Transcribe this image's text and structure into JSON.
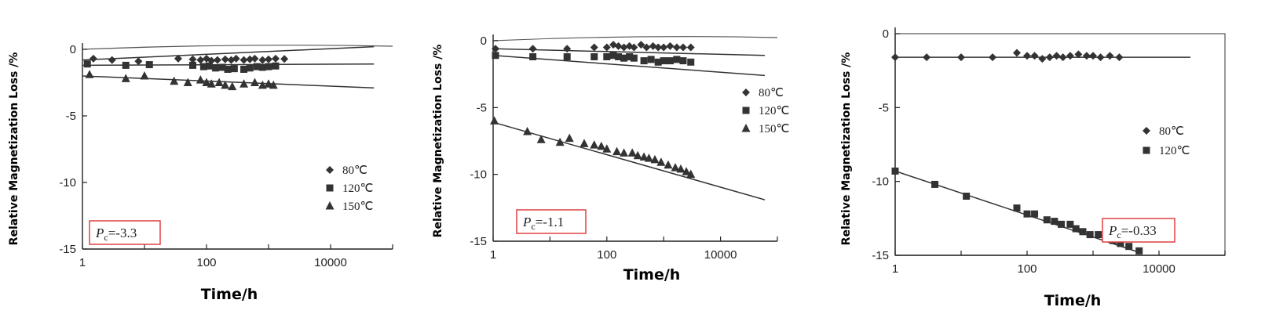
{
  "chart_data": [
    {
      "type": "scatter",
      "xscale": "log",
      "xlim": [
        1,
        100000
      ],
      "ylim": [
        -15,
        0
      ],
      "xticks": [
        "1",
        "100",
        "10000"
      ],
      "yticks": [
        "0",
        "-5",
        "-10",
        "-15"
      ],
      "xlabel": "Time/h",
      "ylabel": "Relative Magnetization Loss /%",
      "legend_position": "bottom-right",
      "annotation": {
        "prefix": "P",
        "sub": "c",
        "value": "=-3.3"
      },
      "series": [
        {
          "name": "80℃",
          "marker": "diamond",
          "x": [
            1.5,
            3,
            8,
            35,
            60,
            80,
            100,
            120,
            150,
            200,
            250,
            300,
            400,
            500,
            600,
            800,
            1000,
            1300,
            1800
          ],
          "y": [
            -0.7,
            -0.8,
            -0.9,
            -0.7,
            -0.75,
            -0.8,
            -0.7,
            -0.85,
            -0.8,
            -0.75,
            -0.8,
            -0.7,
            -0.8,
            -0.75,
            -0.7,
            -0.8,
            -0.75,
            -0.7,
            -0.72
          ],
          "fit_x": [
            1,
            50000
          ],
          "fit_y": [
            -0.8,
            0.2
          ]
        },
        {
          "name": "120℃",
          "marker": "square",
          "x": [
            1.2,
            5,
            12,
            60,
            90,
            110,
            140,
            180,
            220,
            280,
            400,
            500,
            650,
            800,
            1000,
            1300
          ],
          "y": [
            -1.1,
            -1.2,
            -1.15,
            -1.2,
            -1.3,
            -1.25,
            -1.4,
            -1.35,
            -1.5,
            -1.45,
            -1.5,
            -1.4,
            -1.3,
            -1.35,
            -1.3,
            -1.25
          ],
          "fit_x": [
            1,
            50000
          ],
          "fit_y": [
            -1.2,
            -1.1
          ]
        },
        {
          "name": "150℃",
          "marker": "triangle",
          "x": [
            1.3,
            5,
            10,
            30,
            50,
            80,
            100,
            120,
            160,
            200,
            260,
            400,
            600,
            800,
            1000,
            1200
          ],
          "y": [
            -1.9,
            -2.2,
            -2.0,
            -2.4,
            -2.5,
            -2.3,
            -2.5,
            -2.6,
            -2.5,
            -2.7,
            -2.8,
            -2.6,
            -2.5,
            -2.7,
            -2.6,
            -2.7
          ],
          "fit_x": [
            1,
            50000
          ],
          "fit_y": [
            -2.0,
            -2.9
          ]
        }
      ]
    },
    {
      "type": "scatter",
      "xscale": "log",
      "xlim": [
        1,
        100000
      ],
      "ylim": [
        -15,
        0
      ],
      "xticks": [
        "1",
        "100",
        "10000"
      ],
      "yticks": [
        "0",
        "-5",
        "-10",
        "-15"
      ],
      "xlabel": "Time/h",
      "ylabel": "Relative Magnetization Loss /%",
      "legend_position": "top-right",
      "annotation": {
        "prefix": "P",
        "sub": "c",
        "value": "=-1.1"
      },
      "series": [
        {
          "name": "80℃",
          "marker": "diamond",
          "x": [
            1.1,
            5,
            20,
            60,
            100,
            130,
            160,
            200,
            250,
            300,
            400,
            500,
            650,
            800,
            1000,
            1300,
            1700,
            2200,
            3000
          ],
          "y": [
            -0.6,
            -0.6,
            -0.6,
            -0.5,
            -0.5,
            -0.3,
            -0.4,
            -0.5,
            -0.4,
            -0.5,
            -0.3,
            -0.5,
            -0.4,
            -0.5,
            -0.5,
            -0.4,
            -0.5,
            -0.5,
            -0.5
          ],
          "fit_x": [
            1,
            60000
          ],
          "fit_y": [
            -0.6,
            -1.1
          ]
        },
        {
          "name": "120℃",
          "marker": "square",
          "x": [
            1.1,
            5,
            20,
            60,
            100,
            130,
            160,
            200,
            250,
            300,
            450,
            600,
            800,
            1000,
            1300,
            1700,
            2200,
            3000
          ],
          "y": [
            -1.1,
            -1.2,
            -1.2,
            -1.2,
            -1.2,
            -1.1,
            -1.2,
            -1.3,
            -1.2,
            -1.3,
            -1.5,
            -1.4,
            -1.6,
            -1.5,
            -1.5,
            -1.4,
            -1.5,
            -1.6
          ],
          "fit_x": [
            1,
            60000
          ],
          "fit_y": [
            -1.1,
            -2.6
          ]
        },
        {
          "name": "150℃",
          "marker": "triangle",
          "x": [
            1.05,
            4,
            7,
            15,
            22,
            40,
            60,
            80,
            100,
            150,
            200,
            280,
            350,
            450,
            550,
            700,
            900,
            1200,
            1600,
            2000,
            2500,
            3000
          ],
          "y": [
            -6.0,
            -6.8,
            -7.4,
            -7.6,
            -7.3,
            -7.7,
            -7.8,
            -7.9,
            -8.1,
            -8.3,
            -8.4,
            -8.4,
            -8.6,
            -8.7,
            -8.8,
            -8.9,
            -9.1,
            -9.3,
            -9.5,
            -9.6,
            -9.8,
            -10.0
          ],
          "fit_x": [
            1,
            60000
          ],
          "fit_y": [
            -6.1,
            -11.9
          ]
        }
      ]
    },
    {
      "type": "scatter",
      "xscale": "log",
      "xlim": [
        1,
        100000
      ],
      "ylim": [
        -15,
        0
      ],
      "xticks": [
        "1",
        "100",
        "10000"
      ],
      "yticks": [
        "0",
        "-5",
        "-10",
        "-15"
      ],
      "xlabel": "Time/h",
      "ylabel": "Relative Magnetization Loss /%",
      "legend_position": "right",
      "annotation": {
        "prefix": "P",
        "sub": "c",
        "value": "=-0.33"
      },
      "series": [
        {
          "name": "80℃",
          "marker": "diamond",
          "x": [
            1,
            3,
            10,
            30,
            70,
            100,
            130,
            170,
            220,
            280,
            350,
            450,
            600,
            800,
            1000,
            1300,
            1800,
            2500
          ],
          "y": [
            -1.6,
            -1.6,
            -1.6,
            -1.6,
            -1.3,
            -1.5,
            -1.5,
            -1.7,
            -1.6,
            -1.5,
            -1.6,
            -1.5,
            -1.4,
            -1.5,
            -1.5,
            -1.6,
            -1.5,
            -1.6
          ],
          "fit_x": [
            1,
            30000
          ],
          "fit_y": [
            -1.6,
            -1.6
          ]
        },
        {
          "name": "120℃",
          "marker": "square",
          "x": [
            1,
            4,
            12,
            70,
            100,
            130,
            200,
            260,
            330,
            450,
            550,
            700,
            900,
            1200,
            1600,
            2000,
            2600,
            3500,
            5000
          ],
          "y": [
            -9.3,
            -10.2,
            -11.0,
            -11.8,
            -12.2,
            -12.2,
            -12.6,
            -12.7,
            -12.9,
            -12.9,
            -13.2,
            -13.4,
            -13.6,
            -13.6,
            -13.8,
            -14.0,
            -14.2,
            -14.4,
            -14.7
          ],
          "fit_x": [
            1,
            5000
          ],
          "fit_y": [
            -9.3,
            -14.8
          ]
        }
      ]
    }
  ]
}
